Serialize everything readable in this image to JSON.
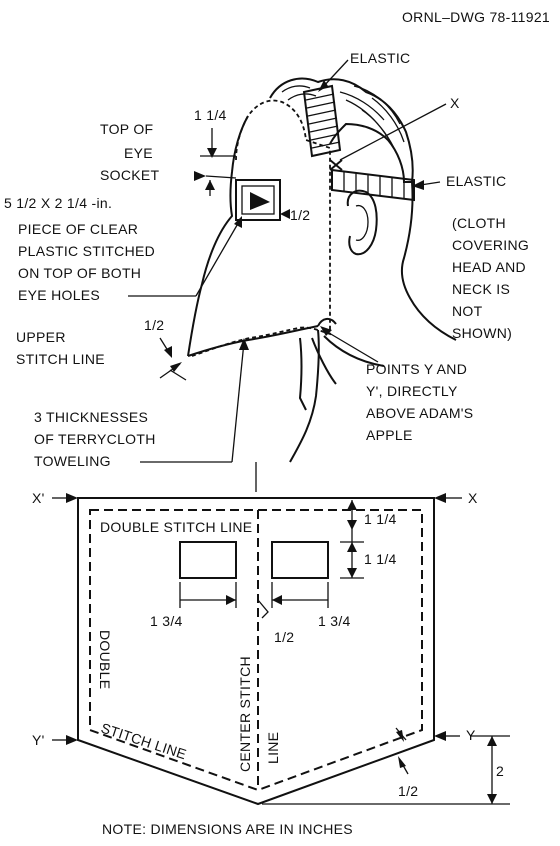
{
  "drawing_number": "ORNL–DWG 78-11921",
  "head_labels": {
    "elastic_top": "ELASTIC",
    "elastic_side": "ELASTIC",
    "point_x": "X",
    "top_dim": "1 1/4",
    "top_of_eye_socket": [
      "TOP OF",
      "EYE",
      "SOCKET"
    ],
    "plastic_size": "5 1/2 X 2 1/4 -in.",
    "plastic_piece": [
      "PIECE OF CLEAR",
      "PLASTIC STITCHED",
      "ON TOP OF BOTH",
      "EYE HOLES"
    ],
    "eye_dim": "1/2",
    "cloth_note": [
      "(CLOTH",
      "COVERING",
      "HEAD AND",
      "NECK IS",
      "NOT",
      "SHOWN)"
    ],
    "upper_stitch_dim": "1/2",
    "upper_stitch_line": [
      "UPPER",
      "STITCH LINE"
    ],
    "points_y": [
      "POINTS Y AND",
      "Y', DIRECTLY",
      "ABOVE ADAM'S",
      "APPLE"
    ],
    "terrycloth": [
      "3 THICKNESSES",
      "OF TERRYCLOTH",
      "TOWELING"
    ]
  },
  "pattern_labels": {
    "x_prime": "X'",
    "x": "X",
    "y_prime": "Y'",
    "y": "Y",
    "double_stitch_line_top": "DOUBLE STITCH LINE",
    "double_vertical": "DOUBLE",
    "stitch_line_diag": "STITCH  LINE",
    "center_stitch": "CENTER STITCH",
    "center_line": "LINE",
    "dim_top_margin": "1 1/4",
    "dim_hole_height": "1 1/4",
    "dim_left_hole": "1 3/4",
    "dim_right_hole": "1 3/4",
    "dim_gap": "1/2",
    "dim_point": "2",
    "dim_bottom_margin": "1/2"
  },
  "note": "NOTE:  DIMENSIONS ARE IN INCHES"
}
